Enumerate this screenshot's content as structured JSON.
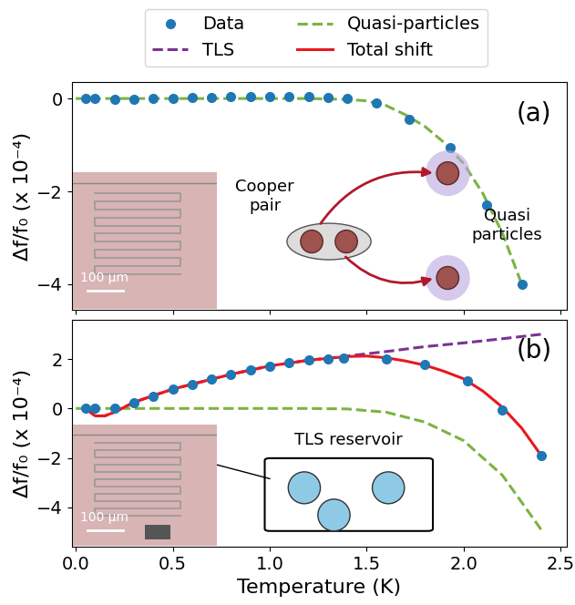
{
  "chart_data": [
    {
      "type": "line",
      "title": "(a)",
      "ylabel": "Δf/f₀ (x 10⁻⁴)",
      "xlim": [
        -0.02,
        2.53
      ],
      "xticks": [
        {
          "value": 0,
          "label": "0.0"
        },
        {
          "value": 0.5,
          "label": "0.5"
        },
        {
          "value": 1,
          "label": "1.0"
        },
        {
          "value": 1.5,
          "label": "1.5"
        },
        {
          "value": 2,
          "label": "2.0"
        },
        {
          "value": 2.5,
          "label": "2.5"
        }
      ],
      "ylim": [
        -4.55,
        0.35
      ],
      "yticks": [
        {
          "value": -4,
          "label": "−4"
        },
        {
          "value": -2,
          "label": "−2"
        },
        0
      ],
      "tick_labels": "y",
      "grid": false,
      "annotations": [
        "Cooper\npair",
        "Quasi\nparticles"
      ],
      "inset_label": "100 μm",
      "series": [
        {
          "name": "Quasi-particles",
          "type": "line",
          "line_style": "dashed",
          "color": "#7cb342",
          "x": [
            0,
            0.2,
            0.4,
            0.6,
            0.8,
            1.0,
            1.2,
            1.4,
            1.5,
            1.6,
            1.7,
            1.8,
            1.9,
            2.0,
            2.1,
            2.2,
            2.3
          ],
          "values": [
            0,
            0,
            0,
            0,
            0,
            0,
            0,
            -0.02,
            -0.05,
            -0.15,
            -0.35,
            -0.6,
            -0.95,
            -1.4,
            -2.05,
            -2.9,
            -4.0
          ]
        },
        {
          "name": "Data",
          "type": "scatter",
          "marker": "o",
          "color": "#1f77b4",
          "x": [
            0.05,
            0.1,
            0.2,
            0.3,
            0.4,
            0.5,
            0.6,
            0.7,
            0.8,
            0.9,
            1.0,
            1.1,
            1.2,
            1.3,
            1.4,
            1.55,
            1.72,
            1.93,
            2.12,
            2.3
          ],
          "values": [
            0,
            0,
            -0.02,
            -0.01,
            0,
            0.01,
            0.02,
            0.03,
            0.04,
            0.05,
            0.05,
            0.05,
            0.04,
            0.03,
            0,
            -0.1,
            -0.45,
            -1.05,
            -2.3,
            -4.0
          ]
        }
      ]
    },
    {
      "type": "line",
      "title": "(b)",
      "xlabel": "Temperature (K)",
      "ylabel": "Δf/f₀ (x 10⁻⁴)",
      "xlim": [
        -0.02,
        2.53
      ],
      "xticks": [
        {
          "value": 0,
          "label": "0.0"
        },
        {
          "value": 0.5,
          "label": "0.5"
        },
        {
          "value": 1,
          "label": "1.0"
        },
        {
          "value": 1.5,
          "label": "1.5"
        },
        {
          "value": 2,
          "label": "2.0"
        },
        {
          "value": 2.5,
          "label": "2.5"
        }
      ],
      "ylim": [
        -5.6,
        3.6
      ],
      "yticks": [
        {
          "value": -4,
          "label": "−4"
        },
        {
          "value": -2,
          "label": "−2"
        },
        0,
        2
      ],
      "grid": false,
      "legend": "upper center",
      "annotations": [
        "TLS reservoir"
      ],
      "inset_label": "100 μm",
      "series": [
        {
          "name": "Data",
          "type": "scatter",
          "marker": "o",
          "color": "#1f77b4",
          "x": [
            0.05,
            0.1,
            0.2,
            0.3,
            0.4,
            0.5,
            0.6,
            0.7,
            0.8,
            0.9,
            1.0,
            1.1,
            1.2,
            1.3,
            1.38,
            1.6,
            1.8,
            2.02,
            2.2,
            2.4
          ],
          "values": [
            0,
            0,
            0.02,
            0.25,
            0.5,
            0.78,
            0.98,
            1.18,
            1.37,
            1.57,
            1.72,
            1.85,
            1.95,
            2.0,
            2.02,
            2.0,
            1.77,
            1.12,
            -0.05,
            -1.9
          ]
        },
        {
          "name": "TLS",
          "type": "line",
          "line_style": "dashed",
          "color": "#7b3294",
          "x": [
            0.05,
            0.1,
            0.15,
            0.2,
            0.3,
            0.4,
            0.5,
            0.6,
            0.7,
            0.8,
            0.9,
            1.0,
            1.2,
            1.4,
            1.6,
            1.8,
            2.0,
            2.2,
            2.4
          ],
          "values": [
            0,
            -0.3,
            -0.3,
            -0.15,
            0.25,
            0.52,
            0.78,
            0.98,
            1.18,
            1.38,
            1.55,
            1.72,
            1.95,
            2.12,
            2.3,
            2.5,
            2.65,
            2.82,
            3.0
          ]
        },
        {
          "name": "Quasi-particles",
          "type": "line",
          "line_style": "dashed",
          "color": "#7cb342",
          "x": [
            0,
            0.2,
            0.4,
            0.6,
            0.8,
            1.0,
            1.2,
            1.4,
            1.6,
            1.8,
            2.0,
            2.2,
            2.4
          ],
          "values": [
            0,
            0,
            0,
            0,
            0,
            0,
            0,
            -0.02,
            -0.15,
            -0.55,
            -1.3,
            -2.7,
            -4.9
          ]
        },
        {
          "name": "Total shift",
          "type": "line",
          "line_style": "solid",
          "color": "#e8191f",
          "x": [
            0.05,
            0.1,
            0.15,
            0.2,
            0.3,
            0.4,
            0.5,
            0.6,
            0.7,
            0.8,
            0.9,
            1.0,
            1.2,
            1.4,
            1.5,
            1.6,
            1.7,
            1.8,
            1.9,
            2.0,
            2.1,
            2.2,
            2.3,
            2.4
          ],
          "values": [
            0,
            -0.3,
            -0.3,
            -0.15,
            0.25,
            0.52,
            0.78,
            0.98,
            1.18,
            1.38,
            1.55,
            1.72,
            1.95,
            2.1,
            2.12,
            2.05,
            1.92,
            1.75,
            1.5,
            1.2,
            0.7,
            0.05,
            -0.8,
            -1.9
          ]
        }
      ]
    }
  ]
}
